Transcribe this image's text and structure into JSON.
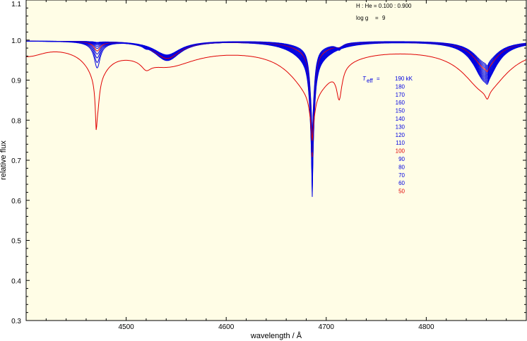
{
  "chart_data": {
    "type": "line",
    "xlabel": "wavelength / Å",
    "ylabel": "relative flux",
    "xlim": [
      4400,
      4900
    ],
    "ylim": [
      0.3,
      1.1
    ],
    "x_ticks": [
      4500,
      4600,
      4700,
      4800
    ],
    "y_ticks": [
      0.3,
      0.4,
      0.5,
      0.6,
      0.7,
      0.8,
      0.9,
      1.0,
      1.1
    ],
    "x_tick_labels": [
      "4500",
      "4600",
      "4700",
      "4800"
    ],
    "y_tick_labels": [
      "0.3",
      "0.4",
      "0.5",
      "0.6",
      "0.7",
      "0.8",
      "0.9",
      "1.0",
      "1.1"
    ],
    "annotations": {
      "abundance_prefix": "H : He = 0.100 : 0.900",
      "logg_label": "log g",
      "logg_eq": "=",
      "logg_value": "9",
      "teff_symbol": "T",
      "teff_sub": "eff",
      "teff_eq": "="
    },
    "background_color": "#fffde6",
    "colors": {
      "blue": "#0000e0",
      "red": "#e00000"
    },
    "legend_position": "center-right",
    "series": [
      {
        "name": "190 kK",
        "teff": 190,
        "color": "#0000e0"
      },
      {
        "name": "180",
        "teff": 180,
        "color": "#0000e0"
      },
      {
        "name": "170",
        "teff": 170,
        "color": "#0000e0"
      },
      {
        "name": "160",
        "teff": 160,
        "color": "#0000e0"
      },
      {
        "name": "150",
        "teff": 150,
        "color": "#0000e0"
      },
      {
        "name": "140",
        "teff": 140,
        "color": "#0000e0"
      },
      {
        "name": "130",
        "teff": 130,
        "color": "#0000e0"
      },
      {
        "name": "120",
        "teff": 120,
        "color": "#0000e0"
      },
      {
        "name": "110",
        "teff": 110,
        "color": "#0000e0"
      },
      {
        "name": "100",
        "teff": 100,
        "color": "#e00000"
      },
      {
        "name": "90",
        "teff": 90,
        "color": "#0000e0"
      },
      {
        "name": "80",
        "teff": 80,
        "color": "#0000e0"
      },
      {
        "name": "70",
        "teff": 70,
        "color": "#0000e0"
      },
      {
        "name": "60",
        "teff": 60,
        "color": "#0000e0"
      },
      {
        "name": "50",
        "teff": 50,
        "color": "#e00000"
      }
    ]
  }
}
